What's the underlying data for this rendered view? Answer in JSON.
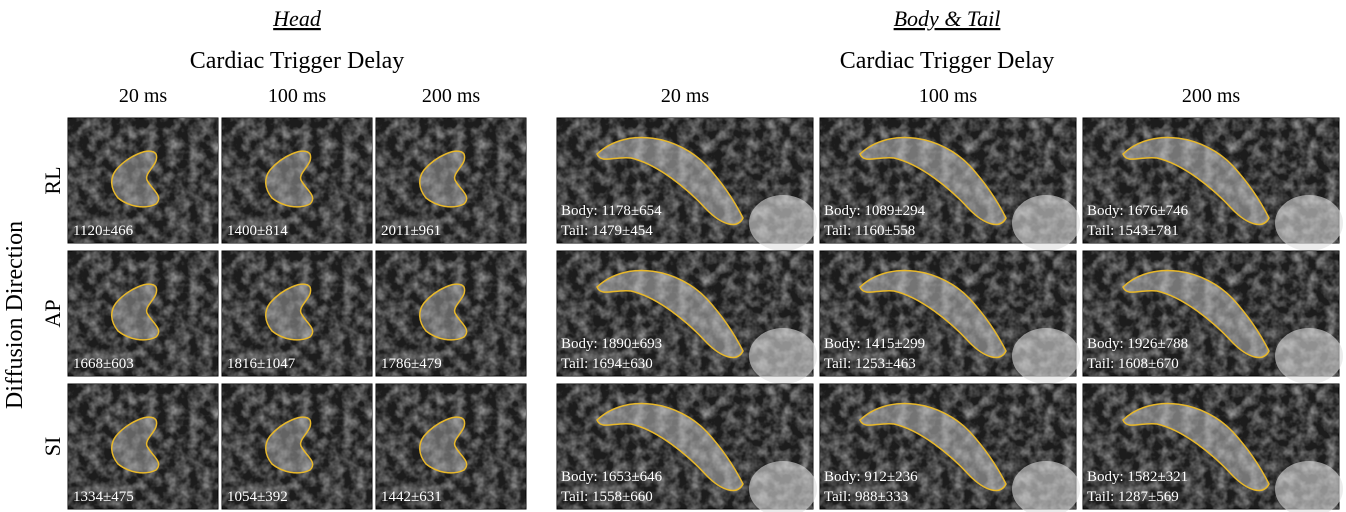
{
  "row_axis": "Diffusion Direction",
  "rows": [
    "RL",
    "AP",
    "SI"
  ],
  "head": {
    "title": "Head",
    "subtitle": "Cardiac Trigger Delay",
    "columns": [
      "20 ms",
      "100 ms",
      "200 ms"
    ],
    "cells": [
      [
        "1120±466",
        "1400±814",
        "2011±961"
      ],
      [
        "1668±603",
        "1816±1047",
        "1786±479"
      ],
      [
        "1334±475",
        "1054±392",
        "1442±631"
      ]
    ]
  },
  "body": {
    "title": "Body & Tail",
    "subtitle": "Cardiac Trigger Delay",
    "columns": [
      "20 ms",
      "100 ms",
      "200 ms"
    ],
    "cells": [
      [
        {
          "body": "Body: 1178±654",
          "tail": "Tail: 1479±454"
        },
        {
          "body": "Body: 1089±294",
          "tail": "Tail: 1160±558"
        },
        {
          "body": "Body: 1676±746",
          "tail": "Tail: 1543±781"
        }
      ],
      [
        {
          "body": "Body: 1890±693",
          "tail": "Tail: 1694±630"
        },
        {
          "body": "Body: 1415±299",
          "tail": "Tail: 1253±463"
        },
        {
          "body": "Body: 1926±788",
          "tail": "Tail: 1608±670"
        }
      ],
      [
        {
          "body": "Body: 1653±646",
          "tail": "Tail: 1558±660"
        },
        {
          "body": "Body: 912±236",
          "tail": "Tail: 988±333"
        },
        {
          "body": "Body: 1582±321",
          "tail": "Tail: 1287±569"
        }
      ]
    ]
  }
}
